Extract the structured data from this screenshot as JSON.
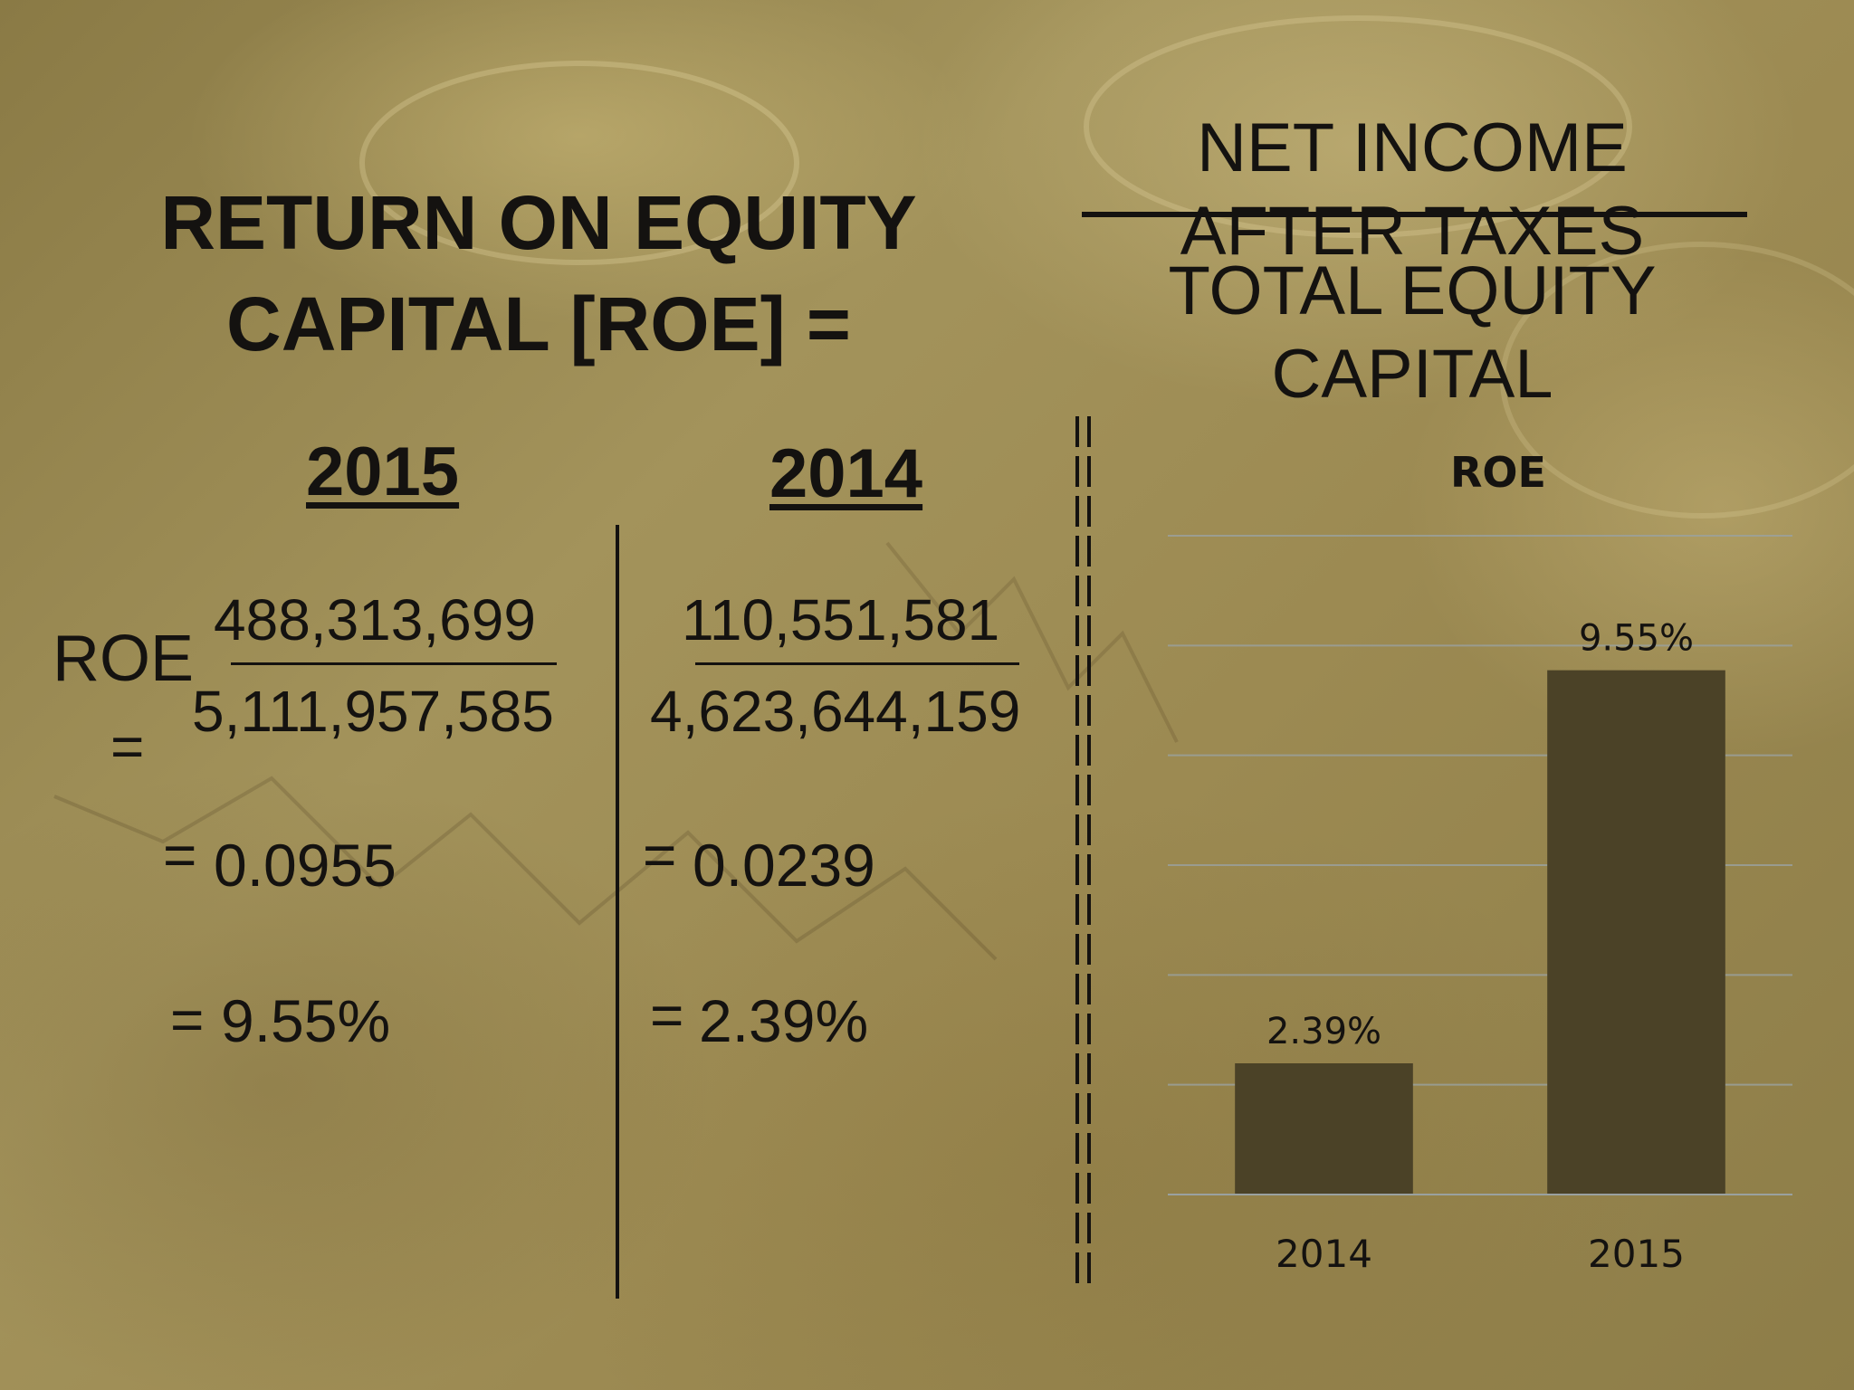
{
  "slide": {
    "title_line1": "RETURN ON EQUITY",
    "title_line2": "CAPITAL [ROE] =",
    "formula": {
      "numerator_line1": "NET INCOME",
      "numerator_line2": "AFTER TAXES",
      "denominator_line1": "TOTAL EQUITY",
      "denominator_line2": "CAPITAL"
    },
    "roe_label": "ROE",
    "roe_eq": "=",
    "col2015": {
      "year": "2015",
      "numerator": "488,313,699",
      "denominator": "5,111,957,585",
      "eq": "=",
      "decimal": "0.0955",
      "percent": "9.55%"
    },
    "col2014": {
      "year": "2014",
      "numerator": "110,551,581",
      "denominator": "4,623,644,159",
      "eq": "=",
      "decimal": "0.0239",
      "percent": "2.39%"
    }
  },
  "chart_data": {
    "type": "bar",
    "title": "ROE",
    "categories": [
      "2014",
      "2015"
    ],
    "values": [
      2.39,
      9.55
    ],
    "data_labels": [
      "2.39%",
      "9.55%"
    ],
    "ylim": [
      0,
      12
    ],
    "grid": true,
    "legend": "none",
    "bar_color": "#4b4227",
    "grid_color": "#9aa1a0"
  }
}
